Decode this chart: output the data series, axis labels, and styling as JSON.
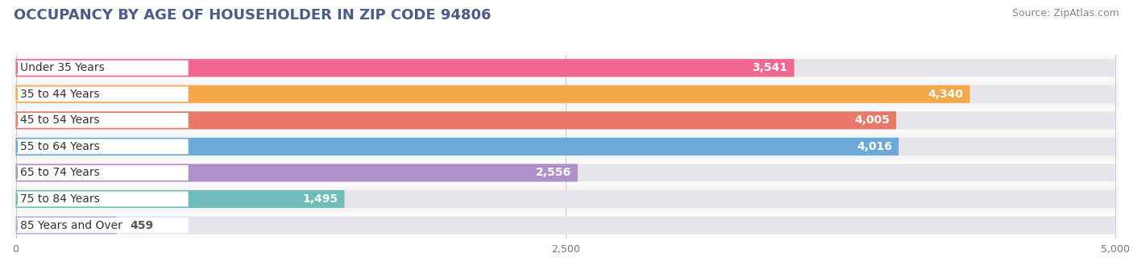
{
  "title": "OCCUPANCY BY AGE OF HOUSEHOLDER IN ZIP CODE 94806",
  "source": "Source: ZipAtlas.com",
  "categories": [
    "Under 35 Years",
    "35 to 44 Years",
    "45 to 54 Years",
    "55 to 64 Years",
    "65 to 74 Years",
    "75 to 84 Years",
    "85 Years and Over"
  ],
  "values": [
    3541,
    4340,
    4005,
    4016,
    2556,
    1495,
    459
  ],
  "bar_colors": [
    "#F06890",
    "#F5A84A",
    "#E87868",
    "#6BAAD8",
    "#B090C8",
    "#70BCBA",
    "#B4B4E8"
  ],
  "bar_bg_colors": [
    "#EEE8F0",
    "#EEE8F0",
    "#EEE8F0",
    "#EEE8F0",
    "#EEE8F0",
    "#EEE8F0",
    "#EEE8F0"
  ],
  "row_bg_colors": [
    "#FAFAFA",
    "#F5F5F5",
    "#FAFAFA",
    "#F5F5F5",
    "#FAFAFA",
    "#F5F5F5",
    "#FAFAFA"
  ],
  "xlim": [
    0,
    5000
  ],
  "xticks": [
    0,
    2500,
    5000
  ],
  "title_fontsize": 13,
  "source_fontsize": 9,
  "label_fontsize": 10,
  "value_fontsize": 10,
  "background_color": "#FFFFFF",
  "title_color": "#4B5C8A"
}
